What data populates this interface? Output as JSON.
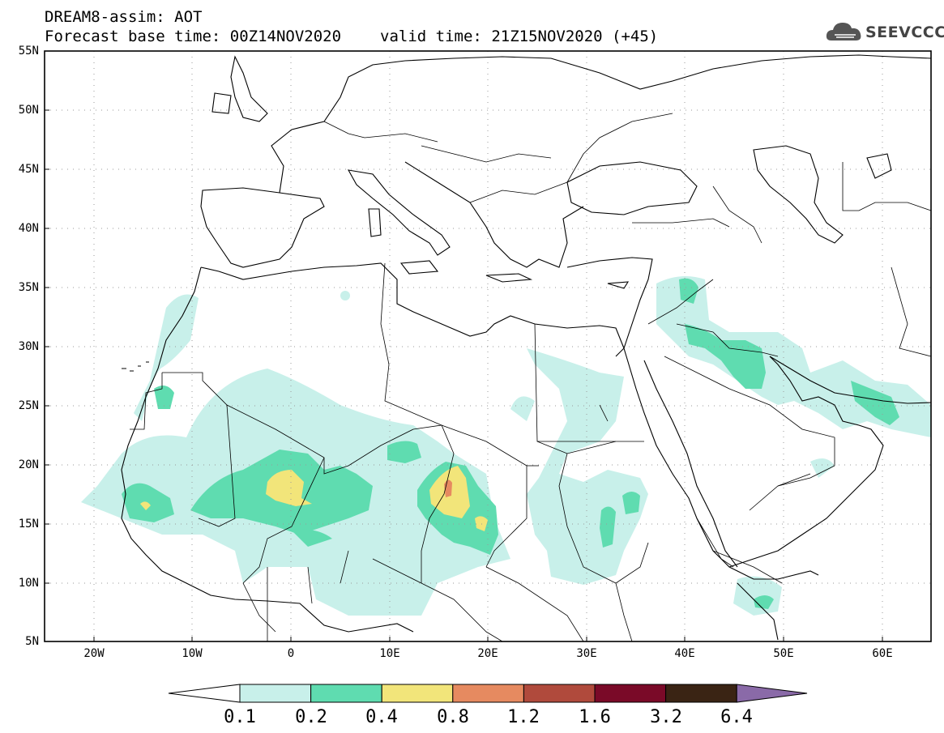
{
  "header": {
    "line1": "DREAM8-assim: AOT",
    "base_time": "Forecast base time: 00Z14NOV2020",
    "valid_time": "valid time: 21Z15NOV2020 (+45)"
  },
  "logo": {
    "text": "SEEVCCC",
    "icon": "cloud-icon"
  },
  "map": {
    "lat_labels": [
      "55N",
      "50N",
      "45N",
      "40N",
      "35N",
      "30N",
      "25N",
      "20N",
      "15N",
      "10N",
      "5N"
    ],
    "lon_labels": [
      "20W",
      "10W",
      "0",
      "10E",
      "20E",
      "30E",
      "40E",
      "50E",
      "60E"
    ],
    "grid": true
  },
  "colorbar": {
    "labels": [
      "0.1",
      "0.2",
      "0.4",
      "0.8",
      "1.2",
      "1.6",
      "3.2",
      "6.4"
    ],
    "colors": [
      "#ffffff",
      "#c8f0ea",
      "#5fdcb0",
      "#f2e57a",
      "#e68a60",
      "#b04a3c",
      "#7a0a28",
      "#3a2414",
      "#8a6aa8"
    ]
  }
}
